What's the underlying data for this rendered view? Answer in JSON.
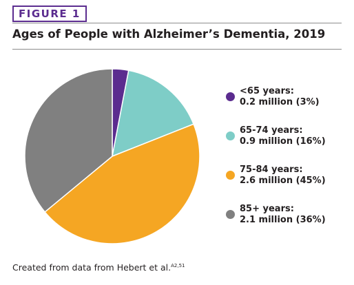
{
  "figure_label": "FIGURE 1",
  "title": "Ages of People with Alzheimer’s Dementia, 2019",
  "source": {
    "text": "Created from data from Hebert et al.",
    "superscript": "A2,51"
  },
  "chart_data": {
    "type": "pie",
    "title": "Ages of People with Alzheimer’s Dementia, 2019",
    "legend_position": "right",
    "slices": [
      {
        "label": "<65 years:",
        "detail": "0.2 million (3%)",
        "value": 0.2,
        "percent": 3,
        "color": "#5b2c8f"
      },
      {
        "label": "65-74 years:",
        "detail": "0.9 million (16%)",
        "value": 0.9,
        "percent": 16,
        "color": "#7ecdc7"
      },
      {
        "label": "75-84 years:",
        "detail": "2.6 million (45%)",
        "value": 2.6,
        "percent": 45,
        "color": "#f5a623"
      },
      {
        "label": "85+ years:",
        "detail": "2.1 million (36%)",
        "value": 2.1,
        "percent": 36,
        "color": "#808080"
      }
    ]
  }
}
